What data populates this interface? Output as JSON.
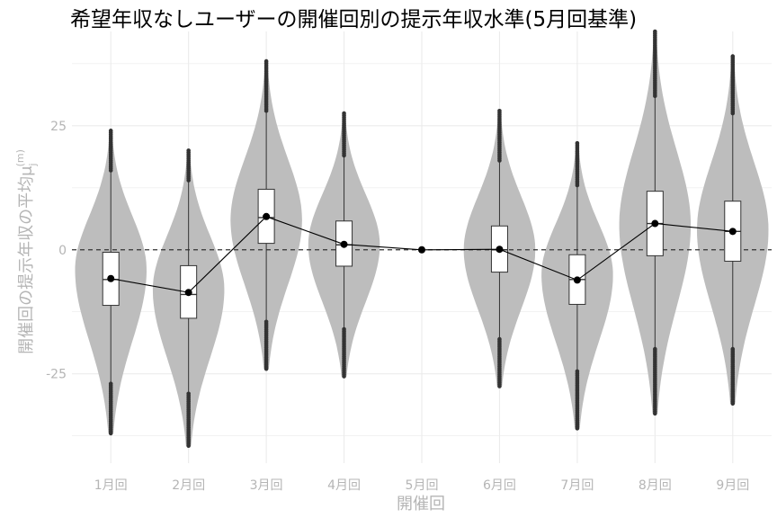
{
  "chart_data": {
    "type": "violin",
    "title": "希望年収なしユーザーの開催回別の提示年収水準(5月回基準)",
    "xlabel": "開催回",
    "ylabel": "開催回の提示年収の平均",
    "ylabel_symbol": "μ",
    "ylabel_sub": "j",
    "ylabel_sup": "(m)",
    "ylim": [
      -43,
      44
    ],
    "yticks": [
      -25,
      0,
      25
    ],
    "reference_line": 0,
    "grid": true,
    "categories": [
      "1月回",
      "2月回",
      "3月回",
      "4月回",
      "5月回",
      "6月回",
      "7月回",
      "8月回",
      "9月回"
    ],
    "series": [
      {
        "median": -6,
        "mean": -5.8,
        "q1": -11.2,
        "q3": -0.5,
        "whisker_low": -27,
        "whisker_high": 16,
        "min": -37,
        "max": 24,
        "violin_peak": -4
      },
      {
        "median": -9,
        "mean": -8.6,
        "q1": -13.8,
        "q3": -3.2,
        "whisker_low": -29,
        "whisker_high": 14,
        "min": -39.5,
        "max": 20,
        "violin_peak": -8
      },
      {
        "median": 6.5,
        "mean": 6.7,
        "q1": 1.3,
        "q3": 12.2,
        "whisker_low": -14.5,
        "whisker_high": 28,
        "min": -24,
        "max": 38,
        "violin_peak": 6
      },
      {
        "median": 1,
        "mean": 1.1,
        "q1": -3.3,
        "q3": 5.8,
        "whisker_low": -16,
        "whisker_high": 19,
        "min": -25.5,
        "max": 27.5,
        "violin_peak": 1
      },
      {
        "median": 0,
        "mean": 0,
        "q1": 0,
        "q3": 0,
        "whisker_low": 0,
        "whisker_high": 0,
        "min": 0,
        "max": 0,
        "violin_peak": 0
      },
      {
        "median": 0,
        "mean": 0.1,
        "q1": -4.5,
        "q3": 4.8,
        "whisker_low": -18,
        "whisker_high": 18,
        "min": -27.5,
        "max": 28,
        "violin_peak": 0
      },
      {
        "median": -6,
        "mean": -6.1,
        "q1": -11,
        "q3": -1,
        "whisker_low": -24.5,
        "whisker_high": 13,
        "min": -36,
        "max": 21.5,
        "violin_peak": -5
      },
      {
        "median": 5.3,
        "mean": 5.3,
        "q1": -1.2,
        "q3": 11.8,
        "whisker_low": -20,
        "whisker_high": 31,
        "min": -33,
        "max": 44,
        "violin_peak": 5
      },
      {
        "median": 3.7,
        "mean": 3.7,
        "q1": -2.3,
        "q3": 9.8,
        "whisker_low": -20,
        "whisker_high": 27.5,
        "min": -31,
        "max": 39,
        "violin_peak": 4
      }
    ],
    "colors": {
      "violin": "#bdbdbd",
      "box_fill": "#ffffff",
      "box_stroke": "#333333",
      "mean_point": "#000000",
      "outlier": "#333333",
      "grid": "#ebebeb",
      "tick_text": "#b5b5b5",
      "reference_line": "#333333"
    }
  }
}
